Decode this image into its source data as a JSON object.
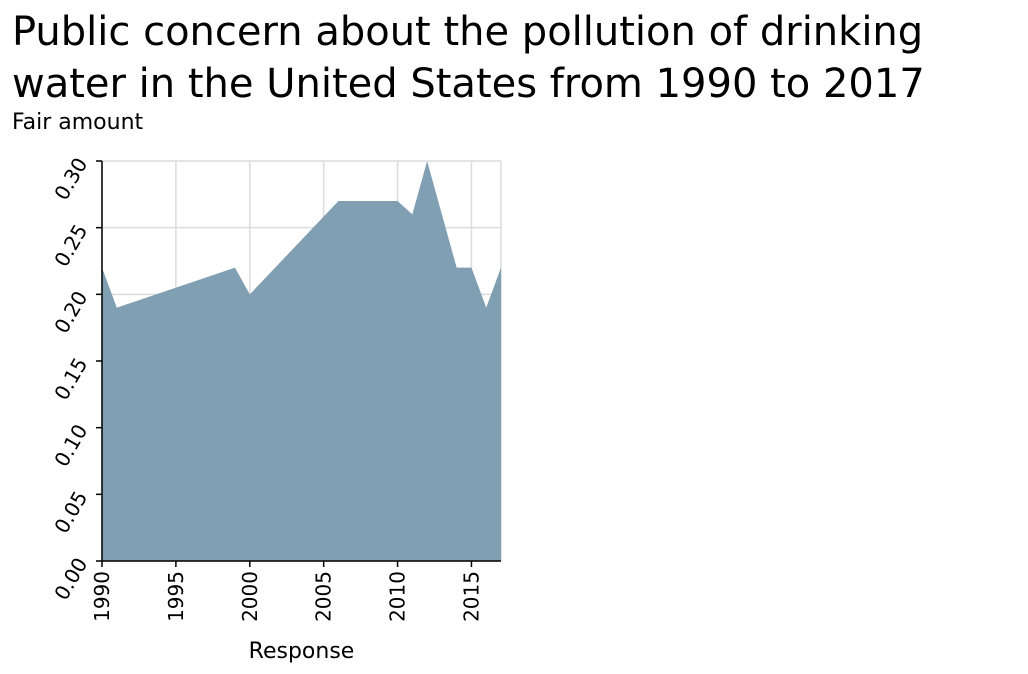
{
  "chart_data": {
    "type": "area",
    "title_lines": [
      "Public concern about the pollution of drinking",
      "water in the United States from 1990 to 2017"
    ],
    "ylabel": "Fair amount",
    "xlabel": "Response",
    "xlim": [
      1990,
      2017
    ],
    "ylim": [
      0,
      0.3
    ],
    "x_ticks": [
      "1990",
      "1995",
      "2000",
      "2005",
      "2010",
      "2015"
    ],
    "x_tick_values": [
      1990,
      1995,
      2000,
      2005,
      2010,
      2015
    ],
    "y_ticks": [
      "0.00",
      "0.05",
      "0.10",
      "0.15",
      "0.20",
      "0.25",
      "0.30"
    ],
    "y_tick_values": [
      0,
      0.05,
      0.1,
      0.15,
      0.2,
      0.25,
      0.3
    ],
    "grid": true,
    "fill_color": "#819fb2",
    "series": [
      {
        "x": [
          1990,
          1991,
          1999,
          2000,
          2006,
          2010,
          2011,
          2012,
          2014,
          2015,
          2016,
          2017
        ],
        "values": [
          0.22,
          0.19,
          0.22,
          0.2,
          0.27,
          0.27,
          0.26,
          0.3,
          0.22,
          0.22,
          0.19,
          0.22
        ]
      }
    ]
  }
}
